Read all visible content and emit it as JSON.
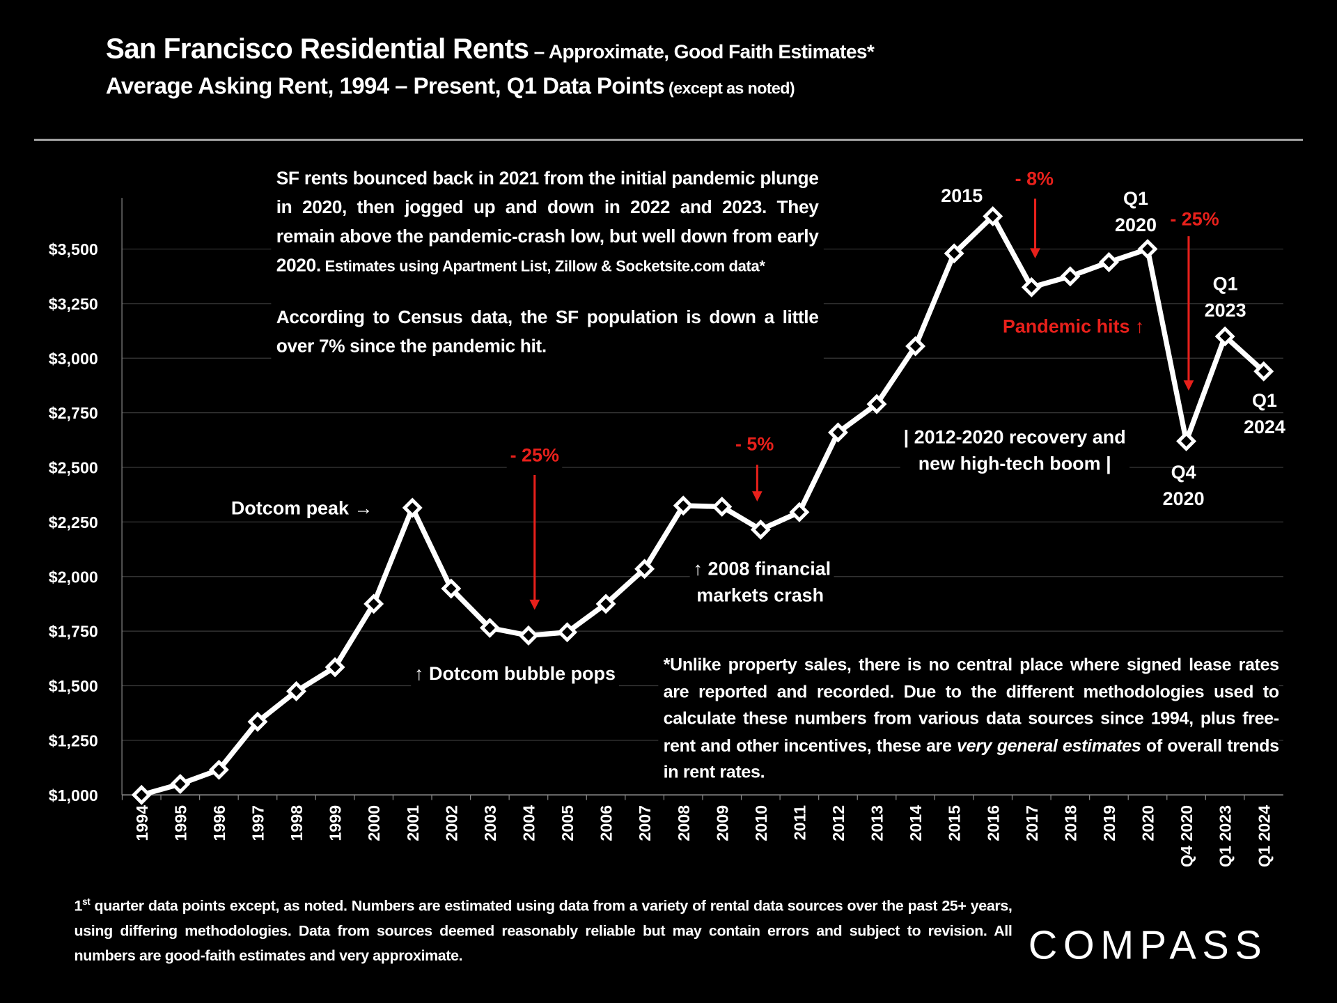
{
  "title": {
    "main": "San Francisco Residential Rents",
    "main_suffix": " – Approximate, Good Faith Estimates*",
    "line2": "Average Asking Rent, 1994 – Present, Q1 Data Points",
    "line2_suffix": " (except as noted)"
  },
  "notes": {
    "main_p1": "SF rents bounced back in 2021 from the initial pandemic plunge in 2020, then jogged up and down in 2022 and 2023. They remain above the pandemic-crash low, but well down from early 2020.",
    "main_p1_small": " Estimates using Apartment List, Zillow & Socketsite.com data*",
    "main_p2": "According to Census data, the SF population is down a little over 7% since the pandemic hit.",
    "foot_a": "*Unlike property sales, there is no central place where signed lease rates are reported and recorded. Due to the different methodologies used to calculate these numbers from various data sources since 1994, plus free-rent and other incentives, these are ",
    "foot_em": "very general estimates",
    "foot_b": " of overall trends in rent rates."
  },
  "annotations": {
    "dotcom_peak": "Dotcom peak →",
    "drop_2004": "- 25%",
    "bubble_pops": "↑ Dotcom bubble pops",
    "drop_2010": "- 5%",
    "crash_2008_l1": "↑ 2008 financial",
    "crash_2008_l2": "markets crash",
    "recovery_l1": "| 2012-2020 recovery and",
    "recovery_l2": "new high-tech boom |",
    "label_2015": "2015",
    "drop_2017": "- 8%",
    "q1_2020_l1": "Q1",
    "q1_2020_l2": "2020",
    "drop_2020": "- 25%",
    "pandemic": "Pandemic hits ↑",
    "q1_2023_l1": "Q1",
    "q1_2023_l2": "2023",
    "q4_2020_l1": "Q4",
    "q4_2020_l2": "2020",
    "q1_2024_l1": "Q1",
    "q1_2024_l2": "2024"
  },
  "footer": {
    "sup": "st",
    "text_a": "1",
    "text_b": " quarter data points except, as noted. Numbers are estimated using data from a variety of rental data sources over the past 25+ years, using differing methodologies. Data from sources deemed reasonably reliable but may contain errors and subject to revision. All numbers are good-faith estimates and very approximate."
  },
  "logo": "COMPASS",
  "colors": {
    "background": "#000000",
    "line": "#ffffff",
    "annotation_red": "#e8201b",
    "grid": "#3a3a3a"
  },
  "chart_data": {
    "type": "line",
    "title": "San Francisco Residential Rents – Approximate, Good Faith Estimates*",
    "subtitle": "Average Asking Rent, 1994 – Present, Q1 Data Points (except as noted)",
    "xlabel": "",
    "ylabel": "",
    "categories": [
      "1994",
      "1995",
      "1996",
      "1997",
      "1998",
      "1999",
      "2000",
      "2001",
      "2002",
      "2003",
      "2004",
      "2005",
      "2006",
      "2007",
      "2008",
      "2009",
      "2010",
      "2011",
      "2012",
      "2013",
      "2014",
      "2015",
      "2016",
      "2017",
      "2018",
      "2019",
      "2020",
      "Q4 2020",
      "Q1 2023",
      "Q1 2024"
    ],
    "values": [
      1000,
      1050,
      1115,
      1335,
      1475,
      1585,
      1875,
      2315,
      1945,
      1765,
      1730,
      1745,
      1875,
      2035,
      2325,
      2320,
      2215,
      2295,
      2660,
      2790,
      3055,
      3480,
      3650,
      3325,
      3375,
      3440,
      3500,
      2620,
      3100,
      2940
    ],
    "ylim": [
      1000,
      3750
    ],
    "yticks": [
      1000,
      1250,
      1500,
      1750,
      2000,
      2250,
      2500,
      2750,
      3000,
      3250,
      3500
    ],
    "ytick_labels": [
      "$1,000",
      "$1,250",
      "$1,500",
      "$1,750",
      "$2,000",
      "$2,250",
      "$2,500",
      "$2,750",
      "$3,000",
      "$3,250",
      "$3,500"
    ],
    "grid": true,
    "marker": "diamond"
  }
}
